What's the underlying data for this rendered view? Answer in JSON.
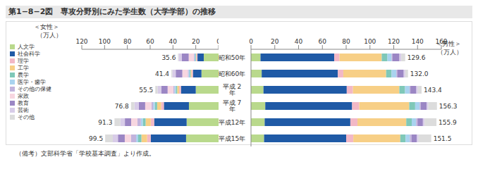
{
  "title": "第1−8−2図　専攻分野別にみた学生数（大学学部）の推移",
  "note": "（備考）文部科学省「学校基本調査」より作成。",
  "chart_data": [
    {
      "type": "bar",
      "title": "＜女性＞",
      "xlabel": "（万人）",
      "orientation": "horizontal",
      "stacked": true,
      "legend": "left",
      "tick_labels": "x",
      "categories": [
        "昭和50年",
        "昭和60年",
        "平成 2 年",
        "平成 7 年",
        "平成12年",
        "平成15年"
      ],
      "xlim": [
        120,
        0
      ],
      "xticks": [
        120,
        100,
        80,
        60,
        40,
        20,
        0
      ],
      "totals": [
        35.6,
        41.4,
        55.5,
        76.8,
        91.3,
        99.5
      ],
      "total_labels": [
        "35.6",
        "41.4",
        "55.5",
        "76.8",
        "91.3",
        "99.5"
      ],
      "series": [
        {
          "name": "人文学",
          "color": "#b9d98c",
          "values": [
            13.0,
            15.0,
            20.0,
            26.0,
            28.0,
            28.5
          ]
        },
        {
          "name": "社会科学",
          "color": "#1f5aa6",
          "values": [
            5.5,
            7.5,
            13.0,
            22.0,
            28.5,
            31.0
          ]
        },
        {
          "name": "理学",
          "color": "#f2b8c6",
          "values": [
            1.0,
            1.2,
            1.6,
            2.4,
            3.0,
            3.2
          ]
        },
        {
          "name": "工学",
          "color": "#f7cf86",
          "values": [
            0.4,
            0.8,
            1.7,
            3.5,
            4.5,
            5.0
          ]
        },
        {
          "name": "農学",
          "color": "#7fc8b8",
          "values": [
            0.5,
            0.8,
            1.2,
            2.0,
            2.5,
            2.8
          ]
        },
        {
          "name": "医学・歯学",
          "color": "#a9d3ef",
          "values": [
            0.7,
            1.0,
            1.2,
            1.5,
            1.7,
            1.8
          ]
        },
        {
          "name": "その他の保健",
          "color": "#c1b3dc",
          "values": [
            0.6,
            0.7,
            1.0,
            1.5,
            3.0,
            4.5
          ]
        },
        {
          "name": "家政",
          "color": "#f7d6e0",
          "values": [
            4.5,
            4.8,
            5.0,
            5.5,
            5.5,
            5.5
          ]
        },
        {
          "name": "教育",
          "color": "#9b86c4",
          "values": [
            6.0,
            5.8,
            5.5,
            5.6,
            5.5,
            6.0
          ]
        },
        {
          "name": "芸術",
          "color": "#d8cce8",
          "values": [
            2.8,
            3.0,
            3.3,
            3.8,
            4.0,
            4.5
          ]
        },
        {
          "name": "その他",
          "color": "#dcdcdc",
          "values": [
            0.6,
            0.8,
            2.0,
            3.0,
            5.1,
            6.7
          ]
        }
      ]
    },
    {
      "type": "bar",
      "title": "＜男性＞",
      "xlabel": "（万人）",
      "orientation": "horizontal",
      "stacked": true,
      "categories": [
        "昭和50年",
        "昭和60年",
        "平成 2 年",
        "平成 7 年",
        "平成12年",
        "平成15年"
      ],
      "xlim": [
        0,
        160
      ],
      "xticks": [
        0,
        20,
        40,
        60,
        80,
        100,
        120,
        140,
        160
      ],
      "totals": [
        129.6,
        132.0,
        143.4,
        156.3,
        155.9,
        151.5
      ],
      "total_labels": [
        "129.6",
        "132.0",
        "143.4",
        "156.3",
        "155.9",
        "151.5"
      ],
      "series": [
        {
          "name": "人文学",
          "color": "#b9d98c",
          "values": [
            8.0,
            9.0,
            10.5,
            12.0,
            11.5,
            11.0
          ]
        },
        {
          "name": "社会科学",
          "color": "#1f5aa6",
          "values": [
            62.0,
            64.0,
            70.0,
            73.0,
            72.0,
            69.0
          ]
        },
        {
          "name": "理学",
          "color": "#f2b8c6",
          "values": [
            4.4,
            4.6,
            5.2,
            6.0,
            6.0,
            6.0
          ]
        },
        {
          "name": "工学",
          "color": "#f7cf86",
          "values": [
            35.5,
            36.0,
            39.0,
            42.0,
            41.0,
            39.5
          ]
        },
        {
          "name": "農学",
          "color": "#7fc8b8",
          "values": [
            4.8,
            4.6,
            4.8,
            5.0,
            4.6,
            4.4
          ]
        },
        {
          "name": "医学・歯学",
          "color": "#a9d3ef",
          "values": [
            3.5,
            4.0,
            3.8,
            3.8,
            3.7,
            3.6
          ]
        },
        {
          "name": "その他の保健",
          "color": "#c1b3dc",
          "values": [
            0.6,
            0.7,
            0.7,
            0.9,
            1.2,
            1.5
          ]
        },
        {
          "name": "家政",
          "color": "#f7d6e0",
          "values": [
            0.0,
            0.0,
            0.0,
            0.0,
            0.0,
            0.0
          ]
        },
        {
          "name": "教育",
          "color": "#9b86c4",
          "values": [
            6.0,
            5.5,
            5.0,
            5.0,
            4.5,
            4.5
          ]
        },
        {
          "name": "芸術",
          "color": "#d8cce8",
          "values": [
            1.5,
            1.3,
            1.3,
            1.4,
            1.4,
            1.4
          ]
        },
        {
          "name": "その他",
          "color": "#dcdcdc",
          "values": [
            3.3,
            2.3,
            3.1,
            7.2,
            10.0,
            10.6
          ]
        }
      ]
    }
  ]
}
